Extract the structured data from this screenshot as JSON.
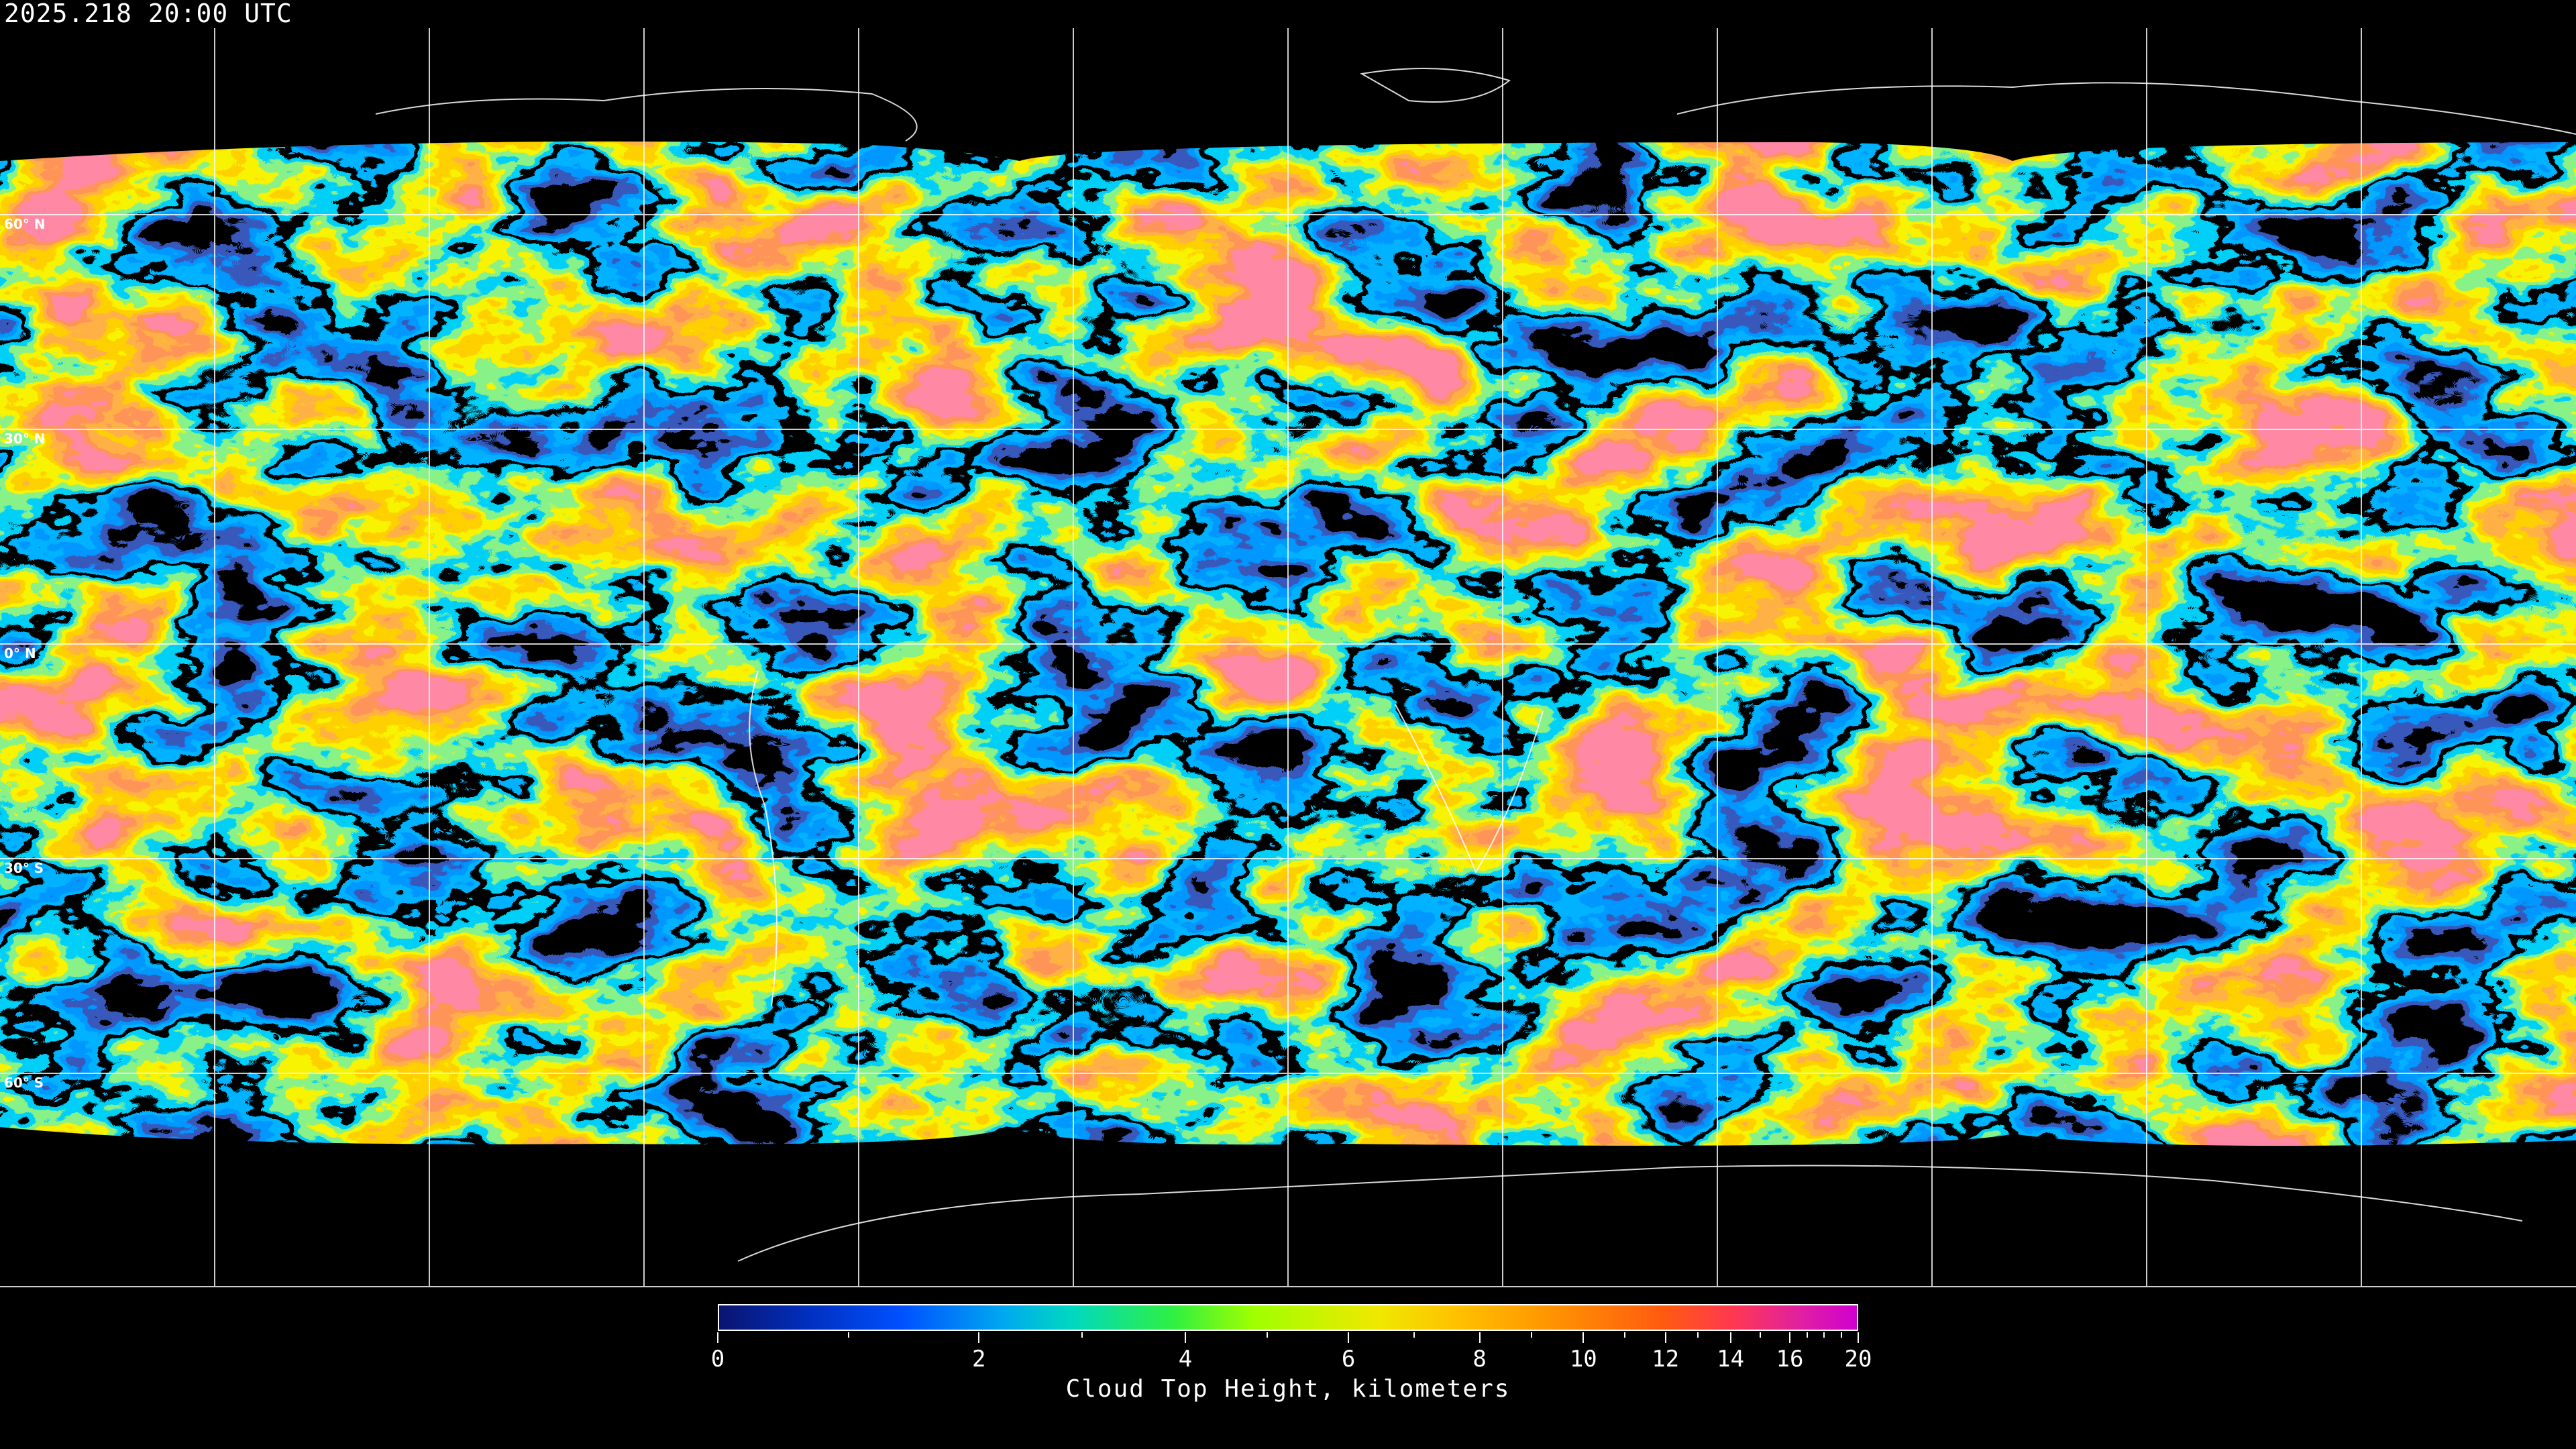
{
  "timestamp": "2025.218 20:00 UTC",
  "latitude_labels": [
    "60° N",
    "30° N",
    "0° N",
    "30° S",
    "60° S"
  ],
  "colorbar": {
    "title": "Cloud Top Height, kilometers",
    "range": [
      0,
      20
    ],
    "major_ticks": [
      "0",
      "2",
      "4",
      "6",
      "8",
      "10",
      "12",
      "14",
      "16",
      "20"
    ],
    "minor_ticks": [
      1,
      3,
      5,
      7,
      9,
      11,
      13,
      15,
      17,
      18,
      19
    ],
    "colors": [
      "#0a1470",
      "#0050ff",
      "#00a8f0",
      "#30f040",
      "#a0ff00",
      "#f0e800",
      "#ffc000",
      "#ff9a00",
      "#ff5a10",
      "#ff3850",
      "#d000d0"
    ]
  },
  "gridlines": "on",
  "projection": "equirectangular"
}
